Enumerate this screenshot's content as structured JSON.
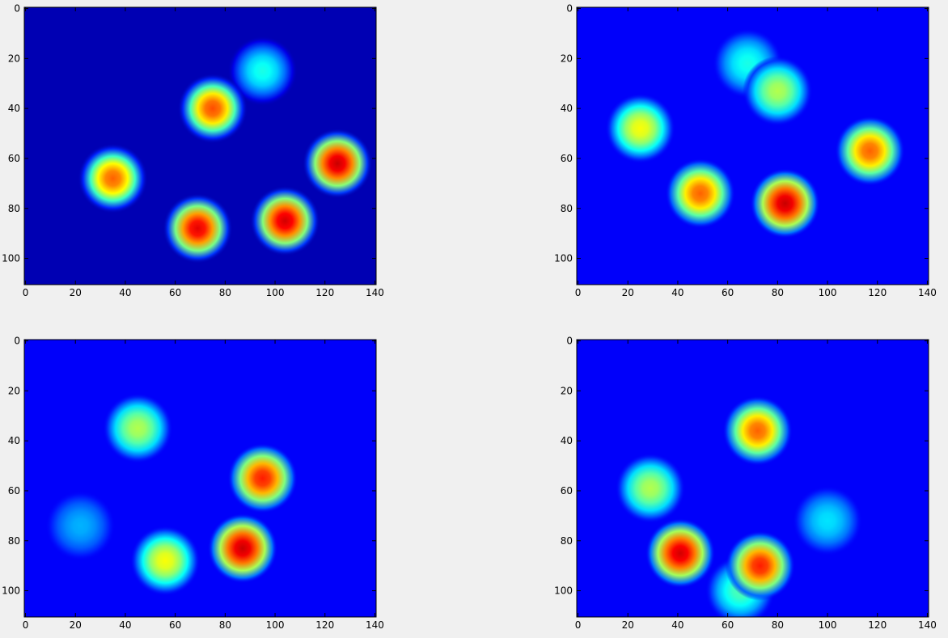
{
  "chart_data": [
    {
      "type": "heatmap",
      "xlim": [
        -0.5,
        140.5
      ],
      "ylim": [
        110.5,
        -0.5
      ],
      "xticks": [
        0,
        20,
        40,
        60,
        80,
        100,
        120,
        140
      ],
      "yticks": [
        0,
        20,
        40,
        60,
        80,
        100
      ],
      "background": 0.05,
      "peaks": [
        {
          "x": 95,
          "y": 25,
          "value": 0.4
        },
        {
          "x": 75,
          "y": 40,
          "value": 0.8
        },
        {
          "x": 35,
          "y": 68,
          "value": 0.78
        },
        {
          "x": 69,
          "y": 88,
          "value": 0.9
        },
        {
          "x": 104,
          "y": 85,
          "value": 0.92
        },
        {
          "x": 125,
          "y": 62,
          "value": 0.93
        }
      ]
    },
    {
      "type": "heatmap",
      "xlim": [
        -0.5,
        140.5
      ],
      "ylim": [
        110.5,
        -0.5
      ],
      "xticks": [
        0,
        20,
        40,
        60,
        80,
        100,
        120,
        140
      ],
      "yticks": [
        0,
        20,
        40,
        60,
        80,
        100
      ],
      "background": 0.12,
      "peaks": [
        {
          "x": 68,
          "y": 22,
          "value": 0.4
        },
        {
          "x": 80,
          "y": 33,
          "value": 0.55
        },
        {
          "x": 25,
          "y": 48,
          "value": 0.62
        },
        {
          "x": 117,
          "y": 57,
          "value": 0.78
        },
        {
          "x": 49,
          "y": 74,
          "value": 0.78
        },
        {
          "x": 83,
          "y": 78,
          "value": 0.93
        }
      ]
    },
    {
      "type": "heatmap",
      "xlim": [
        -0.5,
        140.5
      ],
      "ylim": [
        110.5,
        -0.5
      ],
      "xticks": [
        0,
        20,
        40,
        60,
        80,
        100,
        120,
        140
      ],
      "yticks": [
        0,
        20,
        40,
        60,
        80,
        100
      ],
      "background": 0.12,
      "peaks": [
        {
          "x": 22,
          "y": 74,
          "value": 0.3
        },
        {
          "x": 45,
          "y": 35,
          "value": 0.55
        },
        {
          "x": 95,
          "y": 55,
          "value": 0.85
        },
        {
          "x": 56,
          "y": 88,
          "value": 0.62
        },
        {
          "x": 87,
          "y": 83,
          "value": 0.93
        }
      ]
    },
    {
      "type": "heatmap",
      "xlim": [
        -0.5,
        140.5
      ],
      "ylim": [
        110.5,
        -0.5
      ],
      "xticks": [
        0,
        20,
        40,
        60,
        80,
        100,
        120,
        140
      ],
      "yticks": [
        0,
        20,
        40,
        60,
        80,
        100
      ],
      "background": 0.12,
      "peaks": [
        {
          "x": 100,
          "y": 72,
          "value": 0.35
        },
        {
          "x": 65,
          "y": 100,
          "value": 0.45
        },
        {
          "x": 29,
          "y": 59,
          "value": 0.55
        },
        {
          "x": 72,
          "y": 36,
          "value": 0.78
        },
        {
          "x": 73,
          "y": 90,
          "value": 0.85
        },
        {
          "x": 41,
          "y": 85,
          "value": 0.92
        }
      ]
    }
  ]
}
